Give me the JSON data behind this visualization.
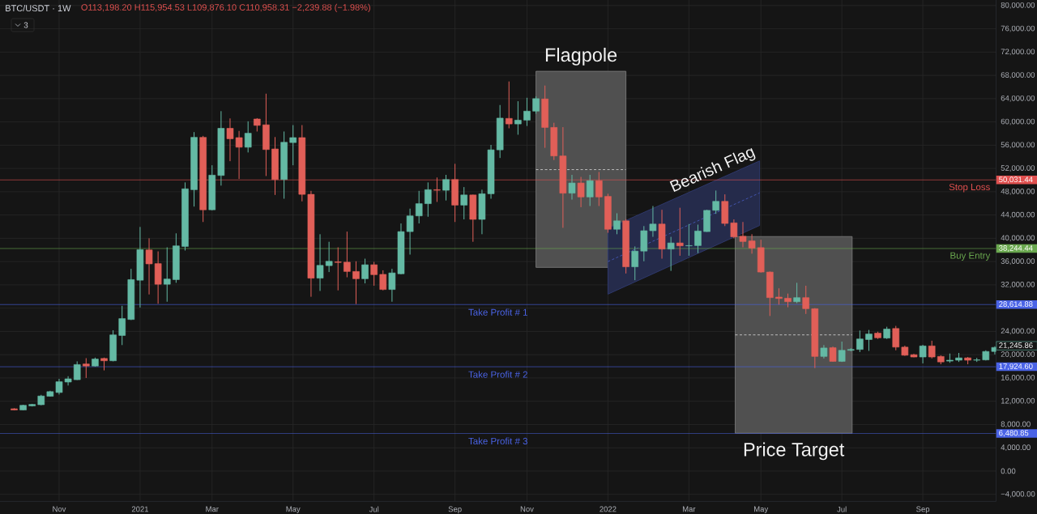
{
  "chart_data": {
    "type": "candlestick",
    "title": "BTC/USDT · 1W",
    "subtitle": "O113,198.20 H115,954.53 L109,876.10 C110,958.31 −2,239.88 (−1.98%)",
    "annotations": [
      "3",
      "Flagpole",
      "Bearish Flag",
      "Price Target",
      "50,031.44",
      "38,244.44",
      "28,614.88",
      "17,924.60",
      "6,480.85",
      "21,245.86"
    ],
    "x": [
      "2020-09-28",
      "2020-10-05",
      "2020-10-12",
      "2020-10-19",
      "2020-10-26",
      "2020-11-02",
      "2020-11-09",
      "2020-11-16",
      "2020-11-23",
      "2020-11-30",
      "2020-12-07",
      "2020-12-14",
      "2020-12-21",
      "2020-12-28",
      "2021-01-04",
      "2021-01-11",
      "2021-01-18",
      "2021-01-25",
      "2021-02-01",
      "2021-02-08",
      "2021-02-15",
      "2021-02-22",
      "2021-03-01",
      "2021-03-08",
      "2021-03-15",
      "2021-03-22",
      "2021-03-29",
      "2021-04-05",
      "2021-04-12",
      "2021-04-19",
      "2021-04-26",
      "2021-05-03",
      "2021-05-10",
      "2021-05-17",
      "2021-05-24",
      "2021-05-31",
      "2021-06-07",
      "2021-06-14",
      "2021-06-21",
      "2021-06-28",
      "2021-07-05",
      "2021-07-12",
      "2021-07-19",
      "2021-07-26",
      "2021-08-02",
      "2021-08-09",
      "2021-08-16",
      "2021-08-23",
      "2021-08-30",
      "2021-09-06",
      "2021-09-13",
      "2021-09-20",
      "2021-09-27",
      "2021-10-04",
      "2021-10-11",
      "2021-10-18",
      "2021-10-25",
      "2021-11-01",
      "2021-11-08",
      "2021-11-15",
      "2021-11-22",
      "2021-11-29",
      "2021-12-06",
      "2021-12-13",
      "2021-12-20",
      "2021-12-27",
      "2022-01-03",
      "2022-01-10",
      "2022-01-17",
      "2022-01-24",
      "2022-01-31",
      "2022-02-07",
      "2022-02-14",
      "2022-02-21",
      "2022-02-28",
      "2022-03-07",
      "2022-03-14",
      "2022-03-21",
      "2022-03-28",
      "2022-04-04",
      "2022-04-11",
      "2022-04-18",
      "2022-04-25",
      "2022-05-02",
      "2022-05-09",
      "2022-05-16",
      "2022-05-23",
      "2022-05-30",
      "2022-06-06",
      "2022-06-13",
      "2022-06-20",
      "2022-06-27",
      "2022-07-04",
      "2022-07-11",
      "2022-07-18",
      "2022-07-25",
      "2022-08-01",
      "2022-08-08",
      "2022-08-15",
      "2022-08-22",
      "2022-08-29",
      "2022-09-05",
      "2022-09-12",
      "2022-09-19",
      "2022-09-26",
      "2022-10-03",
      "2022-10-10",
      "2022-10-17",
      "2022-10-24",
      "2022-10-31"
    ],
    "ohlc": [
      [
        10700,
        10800,
        10450,
        10500
      ],
      [
        10500,
        11400,
        10450,
        11300
      ],
      [
        11200,
        11550,
        11100,
        11450
      ],
      [
        11400,
        13100,
        11300,
        12900
      ],
      [
        12850,
        13800,
        12800,
        13650
      ],
      [
        13500,
        15850,
        13150,
        15350
      ],
      [
        15300,
        16300,
        14700,
        15850
      ],
      [
        15700,
        18850,
        15650,
        18300
      ],
      [
        18400,
        19400,
        16000,
        18050
      ],
      [
        18050,
        19500,
        17950,
        19250
      ],
      [
        19350,
        19500,
        17300,
        18950
      ],
      [
        18950,
        24200,
        18850,
        23400
      ],
      [
        23300,
        28400,
        21650,
        26200
      ],
      [
        26050,
        34750,
        25950,
        32900
      ],
      [
        32800,
        41950,
        28100,
        38050
      ],
      [
        38000,
        40000,
        30350,
        35600
      ],
      [
        35650,
        37750,
        28750,
        32100
      ],
      [
        32100,
        38450,
        29100,
        33000
      ],
      [
        32900,
        40850,
        32350,
        38700
      ],
      [
        38600,
        49600,
        37900,
        48500
      ],
      [
        48350,
        58250,
        45450,
        57350
      ],
      [
        57350,
        57600,
        42800,
        44900
      ],
      [
        44900,
        52550,
        44800,
        50850
      ],
      [
        50800,
        61850,
        49050,
        58900
      ],
      [
        58900,
        60600,
        53250,
        57100
      ],
      [
        57300,
        58450,
        50200,
        55650
      ],
      [
        55650,
        60100,
        54750,
        58050
      ],
      [
        60500,
        60650,
        58350,
        59400
      ],
      [
        59500,
        64850,
        50700,
        55250
      ],
      [
        55350,
        57400,
        47450,
        50100
      ],
      [
        50100,
        58350,
        46800,
        56500
      ],
      [
        56450,
        59450,
        52550,
        57300
      ],
      [
        57300,
        59450,
        46350,
        47550
      ],
      [
        47550,
        48150,
        29950,
        33150
      ],
      [
        33150,
        40700,
        30950,
        35350
      ],
      [
        35300,
        39400,
        34200,
        36050
      ],
      [
        35950,
        38450,
        31050,
        35850
      ],
      [
        35900,
        41150,
        33300,
        34300
      ],
      [
        34300,
        36050,
        28700,
        33050
      ],
      [
        33050,
        36500,
        32250,
        35450
      ],
      [
        35450,
        35950,
        31850,
        33750
      ],
      [
        33800,
        34500,
        31050,
        31200
      ],
      [
        31200,
        34750,
        29100,
        34050
      ],
      [
        33900,
        42550,
        33800,
        41150
      ],
      [
        41150,
        45100,
        37200,
        43850
      ],
      [
        43850,
        48150,
        42550,
        45950
      ],
      [
        45950,
        49600,
        43700,
        48350
      ],
      [
        48350,
        50450,
        46250,
        48250
      ],
      [
        48250,
        50900,
        46500,
        50100
      ],
      [
        50100,
        52800,
        42800,
        45700
      ],
      [
        45700,
        48800,
        43250,
        47450
      ],
      [
        47450,
        47500,
        39400,
        43250
      ],
      [
        43250,
        48350,
        40700,
        47650
      ],
      [
        47650,
        56050,
        46800,
        55200
      ],
      [
        55200,
        62900,
        53800,
        60650
      ],
      [
        60600,
        66950,
        58900,
        59650
      ],
      [
        59650,
        63550,
        57800,
        60300
      ],
      [
        60300,
        64150,
        59300,
        61850
      ],
      [
        61850,
        64400,
        61400,
        64000
      ],
      [
        63950,
        66250,
        55550,
        59050
      ],
      [
        59050,
        59850,
        53450,
        54150
      ],
      [
        54150,
        59100,
        41800,
        47750
      ],
      [
        47750,
        50900,
        46650,
        49500
      ],
      [
        49500,
        50550,
        45350,
        47100
      ],
      [
        47100,
        50900,
        45550,
        49900
      ],
      [
        49900,
        51400,
        45550,
        47100
      ],
      [
        47200,
        47650,
        40950,
        41550
      ],
      [
        41550,
        44300,
        40700,
        43000
      ],
      [
        43000,
        43300,
        33950,
        35100
      ],
      [
        35100,
        38600,
        32800,
        37800
      ],
      [
        37800,
        42100,
        36050,
        41300
      ],
      [
        41300,
        45550,
        40250,
        42450
      ],
      [
        42450,
        44900,
        36500,
        38150
      ],
      [
        38150,
        40250,
        34400,
        39200
      ],
      [
        39200,
        45250,
        37000,
        38700
      ],
      [
        38700,
        42450,
        37000,
        38750
      ],
      [
        38750,
        42350,
        37450,
        41250
      ],
      [
        41150,
        44900,
        41100,
        44800
      ],
      [
        44800,
        48200,
        44200,
        46350
      ],
      [
        46350,
        47550,
        42100,
        42550
      ],
      [
        42650,
        43250,
        40000,
        40250
      ],
      [
        40350,
        42800,
        38450,
        39450
      ],
      [
        39550,
        40700,
        37350,
        38300
      ],
      [
        38400,
        39750,
        34100,
        34200
      ],
      [
        34200,
        34300,
        26650,
        29800
      ],
      [
        29900,
        31400,
        28600,
        29650
      ],
      [
        29700,
        30500,
        28150,
        29100
      ],
      [
        29100,
        32350,
        28850,
        29800
      ],
      [
        29800,
        31850,
        27000,
        27900
      ],
      [
        27900,
        28000,
        17700,
        19700
      ],
      [
        19700,
        21650,
        19350,
        21150
      ],
      [
        21200,
        21400,
        18800,
        18850
      ],
      [
        18850,
        22250,
        18750,
        20750
      ],
      [
        20750,
        21100,
        20600,
        20900
      ],
      [
        20900,
        24150,
        20450,
        22700
      ],
      [
        22600,
        24250,
        20650,
        23550
      ],
      [
        23700,
        23950,
        22700,
        22900
      ],
      [
        22850,
        24800,
        22700,
        24400
      ],
      [
        24500,
        24950,
        20750,
        21300
      ],
      [
        21300,
        21550,
        19800,
        19900
      ],
      [
        20000,
        20150,
        19550,
        19600
      ],
      [
        19600,
        21700,
        18500,
        21500
      ],
      [
        21500,
        22400,
        19350,
        19600
      ],
      [
        19700,
        19900,
        18350,
        18750
      ],
      [
        18900,
        20200,
        18600,
        19050
      ],
      [
        19050,
        20300,
        18750,
        19450
      ],
      [
        19450,
        19600,
        18350,
        19050
      ],
      [
        19050,
        19450,
        18750,
        19100
      ],
      [
        19100,
        20750,
        19000,
        20550
      ],
      [
        20550,
        21450,
        20050,
        21245.86
      ]
    ],
    "colors": [
      "#e15f58",
      "#64b9a4",
      "#64b9a4",
      "#64b9a4",
      "#64b9a4",
      "#64b9a4",
      "#64b9a4",
      "#64b9a4",
      "#e15f58",
      "#64b9a4",
      "#e15f58",
      "#64b9a4",
      "#64b9a4",
      "#64b9a4",
      "#64b9a4",
      "#e15f58",
      "#e15f58",
      "#64b9a4",
      "#64b9a4",
      "#64b9a4",
      "#64b9a4",
      "#e15f58",
      "#64b9a4",
      "#64b9a4",
      "#e15f58",
      "#e15f58",
      "#64b9a4",
      "#e15f58",
      "#e15f58",
      "#e15f58",
      "#64b9a4",
      "#64b9a4",
      "#e15f58",
      "#e15f58",
      "#64b9a4",
      "#64b9a4",
      "#e15f58",
      "#e15f58",
      "#e15f58",
      "#64b9a4",
      "#e15f58",
      "#e15f58",
      "#64b9a4",
      "#64b9a4",
      "#64b9a4",
      "#64b9a4",
      "#64b9a4",
      "#e15f58",
      "#64b9a4",
      "#e15f58",
      "#64b9a4",
      "#e15f58",
      "#64b9a4",
      "#64b9a4",
      "#64b9a4",
      "#e15f58",
      "#64b9a4",
      "#64b9a4",
      "#64b9a4",
      "#e15f58",
      "#e15f58",
      "#e15f58",
      "#64b9a4",
      "#e15f58",
      "#64b9a4",
      "#e15f58",
      "#e15f58",
      "#64b9a4",
      "#e15f58",
      "#64b9a4",
      "#64b9a4",
      "#64b9a4",
      "#e15f58",
      "#64b9a4",
      "#e15f58",
      "#64b9a4",
      "#64b9a4",
      "#64b9a4",
      "#64b9a4",
      "#e15f58",
      "#e15f58",
      "#e15f58",
      "#e15f58",
      "#e15f58",
      "#e15f58",
      "#e15f58",
      "#e15f58",
      "#64b9a4",
      "#e15f58",
      "#e15f58",
      "#64b9a4",
      "#e15f58",
      "#64b9a4",
      "#64b9a4",
      "#64b9a4",
      "#64b9a4",
      "#e15f58",
      "#64b9a4",
      "#e15f58",
      "#e15f58",
      "#e15f58",
      "#64b9a4",
      "#e15f58",
      "#e15f58",
      "#64b9a4",
      "#64b9a4",
      "#e15f58",
      "#64b9a4",
      "#64b9a4",
      "#64b9a4"
    ],
    "series": [
      {
        "type": "line",
        "x": [
          "2021-11-08",
          "2022-01-17"
        ],
        "values": [
          51800,
          51800
        ],
        "lower": [
          35000,
          35000
        ],
        "upper": [
          68700,
          68700
        ],
        "color": "#d9d9d9",
        "line_style": "dashed"
      },
      {
        "type": "line",
        "x": [
          "2022-01-03",
          "2022-05-01"
        ],
        "values": [
          36000,
          47800
        ],
        "lower": [
          30400,
          42200
        ],
        "upper": [
          41700,
          53300
        ],
        "color": "#4a5fc8",
        "line_style": "dashed"
      },
      {
        "type": "line",
        "x": [
          "2022-04-12",
          "2022-07-12"
        ],
        "values": [
          23400,
          23400
        ],
        "lower": [
          6500,
          6500
        ],
        "upper": [
          40300,
          40300
        ],
        "color": "#d9d9d9",
        "line_style": "dashed"
      }
    ],
    "ref_lines": [
      {
        "axis": "y",
        "value": 50031.44,
        "label": "Stop Loss",
        "color": "#e0504f"
      },
      {
        "axis": "y",
        "value": 38244.44,
        "label": "Buy Entry",
        "color": "#6aa84f"
      },
      {
        "axis": "y",
        "value": 28614.88,
        "label": "Take Profit # 1",
        "color": "#4a63e6"
      },
      {
        "axis": "y",
        "value": 17924.6,
        "label": "Take Profit # 2",
        "color": "#4a63e6"
      },
      {
        "axis": "y",
        "value": 6480.85,
        "label": "Take Profit # 3",
        "color": "#4a63e6"
      }
    ],
    "xlim": [
      "2020-09-17",
      "2022-11-01"
    ],
    "xticks": [
      {
        "value": "2020-11-02",
        "label": "Nov"
      },
      {
        "value": "2021-01-04",
        "label": "2021"
      },
      {
        "value": "2021-03-01",
        "label": "Mar"
      },
      {
        "value": "2021-05-03",
        "label": "May"
      },
      {
        "value": "2021-07-05",
        "label": "Jul"
      },
      {
        "value": "2021-09-06",
        "label": "Sep"
      },
      {
        "value": "2021-11-01",
        "label": "Nov"
      },
      {
        "value": "2022-01-03",
        "label": "2022"
      },
      {
        "value": "2022-03-07",
        "label": "Mar"
      },
      {
        "value": "2022-05-02",
        "label": "May"
      },
      {
        "value": "2022-07-04",
        "label": "Jul"
      },
      {
        "value": "2022-09-05",
        "label": "Sep"
      }
    ],
    "ylim": [
      -5210,
      80950
    ],
    "yticks": [
      {
        "value": -4000,
        "label": "−4,000.00"
      },
      {
        "value": 0,
        "label": "0.00"
      },
      {
        "value": 4000,
        "label": "4,000.00"
      },
      {
        "value": 8000,
        "label": "8,000.00"
      },
      {
        "value": 12000,
        "label": "12,000.00"
      },
      {
        "value": 16000,
        "label": "16,000.00"
      },
      {
        "value": 20000,
        "label": "20,000.00"
      },
      {
        "value": 24000,
        "label": "24,000.00"
      },
      {
        "value": 28000,
        "label": null
      },
      {
        "value": 32000,
        "label": "32,000.00"
      },
      {
        "value": 36000,
        "label": "36,000.00"
      },
      {
        "value": 40000,
        "label": "40,000.00"
      },
      {
        "value": 44000,
        "label": "44,000.00"
      },
      {
        "value": 48000,
        "label": "48,000.00"
      },
      {
        "value": 52000,
        "label": "52,000.00"
      },
      {
        "value": 56000,
        "label": "56,000.00"
      },
      {
        "value": 60000,
        "label": "60,000.00"
      },
      {
        "value": 64000,
        "label": "64,000.00"
      },
      {
        "value": 68000,
        "label": "68,000.00"
      },
      {
        "value": 72000,
        "label": "72,000.00"
      },
      {
        "value": 76000,
        "label": "76,000.00"
      },
      {
        "value": 80000,
        "label": "80,000.00"
      }
    ],
    "grid": true
  }
}
